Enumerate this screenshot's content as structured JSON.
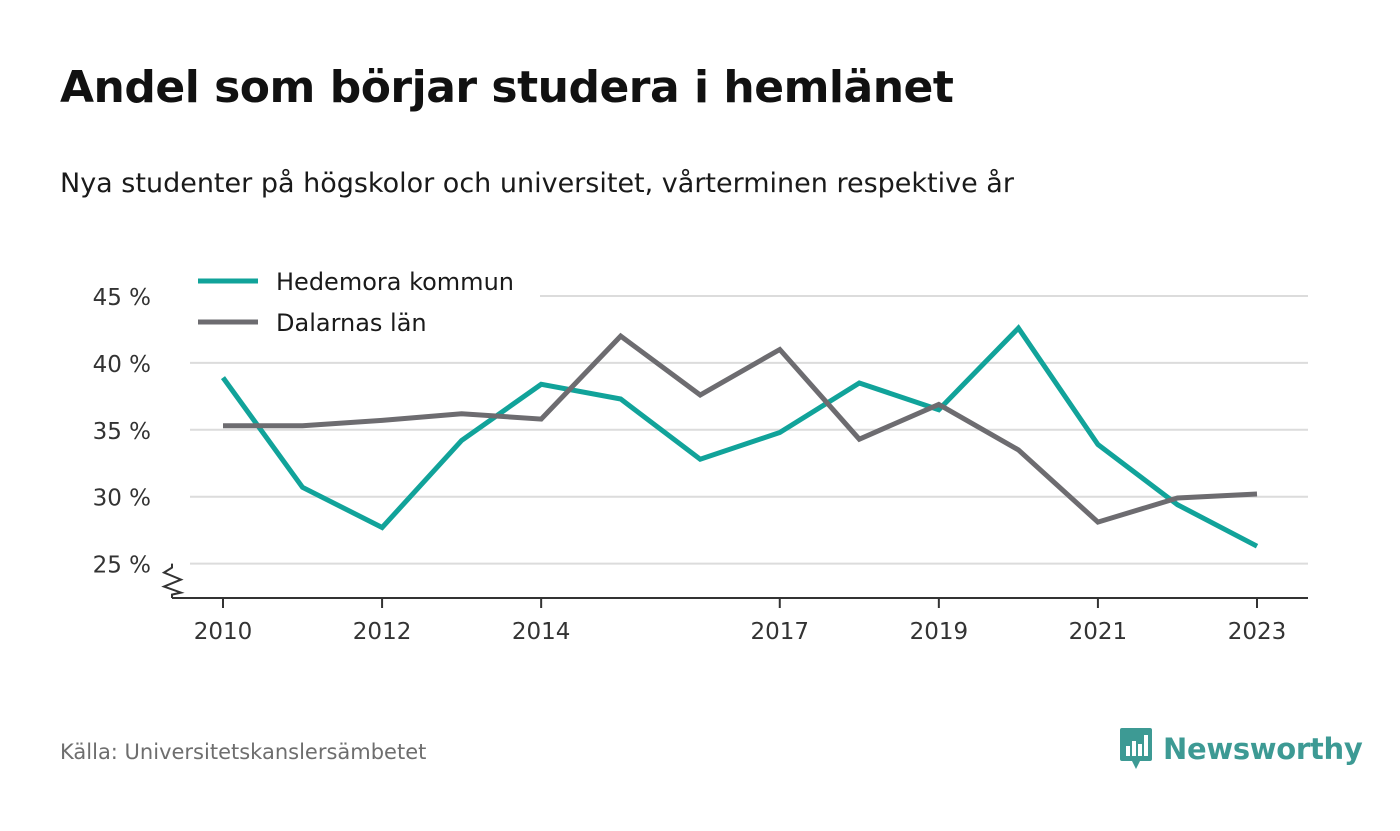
{
  "header": {
    "title": "Andel som börjar studera i hemlänet",
    "subtitle": "Nya studenter på högskolor och universitet, vårterminen respektive år"
  },
  "footer": {
    "source": "Källa: Universitetskanslersämbetet",
    "brand": "Newsworthy",
    "brand_icon": "bar-chart-bubble-icon"
  },
  "colors": {
    "hedemora": "#11a39a",
    "dalarna": "#6d6c70",
    "gridline": "#dcdcdc",
    "axis": "#333333",
    "brand": "#3d9a94"
  },
  "chart_data": {
    "type": "line",
    "x": [
      2010,
      2011,
      2012,
      2013,
      2014,
      2015,
      2016,
      2017,
      2018,
      2019,
      2020,
      2021,
      2022,
      2023
    ],
    "x_tick_labels": [
      "2010",
      "2012",
      "2014",
      "2017",
      "2019",
      "2021",
      "2023"
    ],
    "y_ticks": [
      25,
      30,
      35,
      40,
      45
    ],
    "y_tick_labels": [
      "25 %",
      "30 %",
      "35 %",
      "40 %",
      "45 %"
    ],
    "ylim": [
      22.5,
      45
    ],
    "y_axis_break": true,
    "grid": true,
    "legend_position": "top-left",
    "series": [
      {
        "name": "Hedemora kommun",
        "color": "#11a39a",
        "values": [
          38.9,
          30.7,
          27.7,
          34.2,
          38.4,
          37.3,
          32.8,
          34.8,
          38.5,
          36.5,
          42.6,
          33.9,
          29.4,
          26.3
        ]
      },
      {
        "name": "Dalarnas län",
        "color": "#6d6c70",
        "values": [
          35.3,
          35.3,
          35.7,
          36.2,
          35.8,
          42.0,
          37.6,
          41.0,
          34.3,
          36.9,
          33.5,
          28.1,
          29.9,
          30.2
        ]
      }
    ]
  }
}
